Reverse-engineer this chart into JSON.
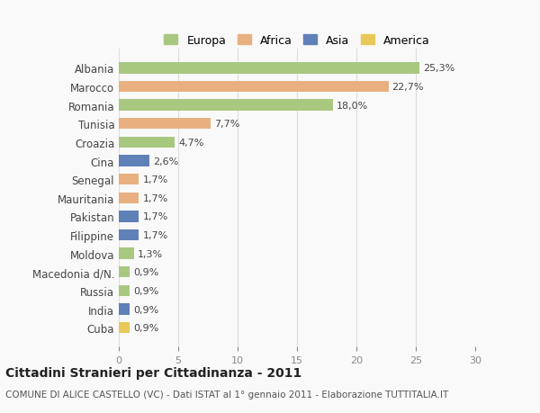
{
  "categories": [
    "Albania",
    "Marocco",
    "Romania",
    "Tunisia",
    "Croazia",
    "Cina",
    "Senegal",
    "Mauritania",
    "Pakistan",
    "Filippine",
    "Moldova",
    "Macedonia d/N.",
    "Russia",
    "India",
    "Cuba"
  ],
  "values": [
    25.3,
    22.7,
    18.0,
    7.7,
    4.7,
    2.6,
    1.7,
    1.7,
    1.7,
    1.7,
    1.3,
    0.9,
    0.9,
    0.9,
    0.9
  ],
  "labels": [
    "25,3%",
    "22,7%",
    "18,0%",
    "7,7%",
    "4,7%",
    "2,6%",
    "1,7%",
    "1,7%",
    "1,7%",
    "1,7%",
    "1,3%",
    "0,9%",
    "0,9%",
    "0,9%",
    "0,9%"
  ],
  "colors": [
    "#a8c880",
    "#e8b080",
    "#a8c880",
    "#e8b080",
    "#a8c880",
    "#6080b8",
    "#e8b080",
    "#e8b080",
    "#6080b8",
    "#6080b8",
    "#a8c880",
    "#a8c880",
    "#a8c880",
    "#6080b8",
    "#e8c858"
  ],
  "continent": [
    "Europa",
    "Africa",
    "Europa",
    "Africa",
    "Europa",
    "Asia",
    "Africa",
    "Africa",
    "Asia",
    "Asia",
    "Europa",
    "Europa",
    "Europa",
    "Asia",
    "America"
  ],
  "legend_labels": [
    "Europa",
    "Africa",
    "Asia",
    "America"
  ],
  "legend_colors": [
    "#a8c880",
    "#e8b080",
    "#6080b8",
    "#e8c858"
  ],
  "title": "Cittadini Stranieri per Cittadinanza - 2011",
  "subtitle": "COMUNE DI ALICE CASTELLO (VC) - Dati ISTAT al 1° gennaio 2011 - Elaborazione TUTTITALIA.IT",
  "xlim": [
    0,
    30
  ],
  "xticks": [
    0,
    5,
    10,
    15,
    20,
    25,
    30
  ],
  "background_color": "#f9f9f9",
  "grid_color": "#dddddd"
}
